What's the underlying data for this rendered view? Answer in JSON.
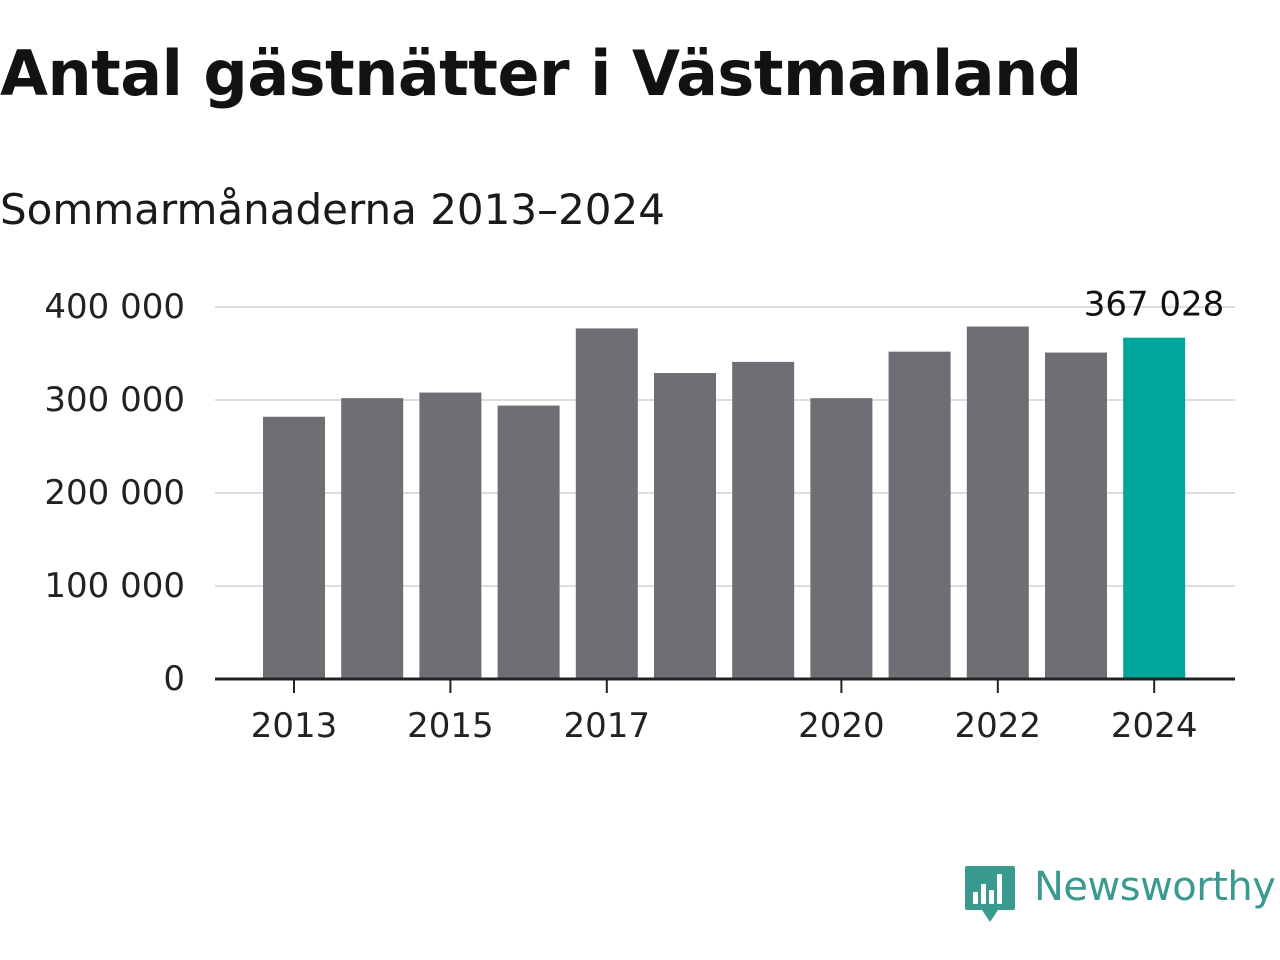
{
  "chart_data": {
    "type": "bar",
    "title": "Antal gästnätter i Västmanland",
    "subtitle": "Sommarmånaderna 2013–2024",
    "xlabel": "",
    "ylabel": "",
    "categories": [
      "2013",
      "2014",
      "2015",
      "2016",
      "2017",
      "2018",
      "2019",
      "2020",
      "2021",
      "2022",
      "2023",
      "2024"
    ],
    "values": [
      282000,
      302000,
      308000,
      294000,
      377000,
      329000,
      341000,
      302000,
      352000,
      379000,
      351000,
      367028
    ],
    "ylim": [
      0,
      400000
    ],
    "yticks": [
      0,
      100000,
      200000,
      300000,
      400000
    ],
    "ytick_labels": [
      "0",
      "100 000",
      "200 000",
      "300 000",
      "400 000"
    ],
    "xtick_labels": [
      "2013",
      "2015",
      "2017",
      "2020",
      "2022",
      "2024"
    ],
    "highlight": {
      "category": "2024",
      "label": "367 028"
    },
    "grid": true,
    "legend": "none",
    "colors": {
      "bar": "#6f6e75",
      "highlight": "#00a59c",
      "grid": "#dddddd",
      "axis": "#222222",
      "text": "#222222"
    }
  },
  "brand": {
    "name": "Newsworthy",
    "icon": "newsworthy-logo-icon",
    "color": "#3a9a8f"
  }
}
